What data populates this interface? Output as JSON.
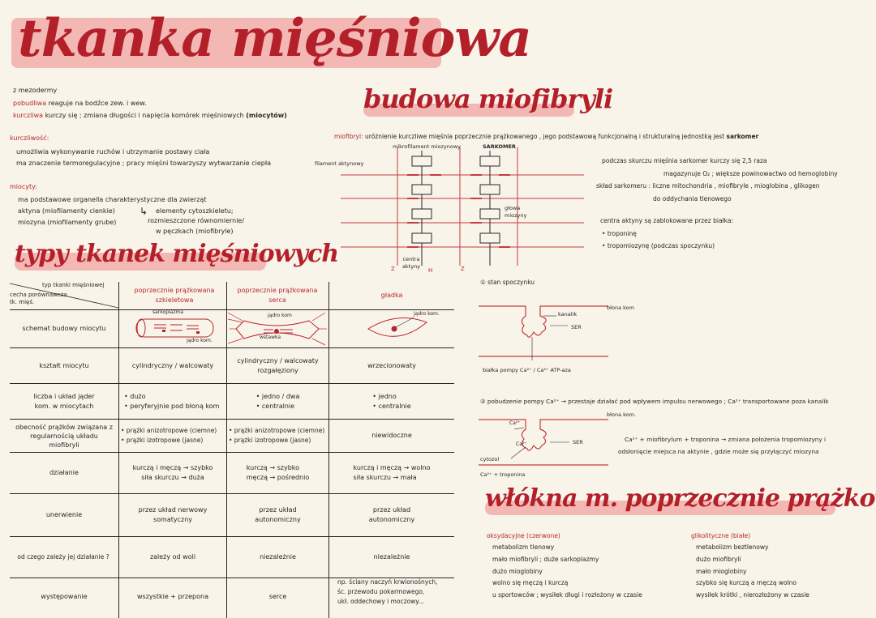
{
  "title": "tkanka mięśniowa",
  "intro": {
    "line1": "z mezodermy",
    "pobudliwa_label": "pobudliwa",
    "pobudliwa_text": "reaguje na bodźce zew. i wew.",
    "kurczliwa_label": "kurczliwa",
    "kurczliwa_text": "kurczy się ; zmiana długości i napięcia komórek mięśniowych",
    "kurczliwa_bold": "(miocytów)"
  },
  "kurczliwosc": {
    "label": "kurczliwość:",
    "lines": [
      "umożliwia wykonywanie ruchów i utrzymanie postawy ciała",
      "ma znaczenie termoregulacyjne ; pracy mięśni towarzyszy wytwarzanie ciepła"
    ]
  },
  "miocyty": {
    "label": "miocyty:",
    "line1": "ma podstawowe organella charakterystyczne dla zwierząt",
    "aktyna": "aktyna (miofilamenty cienkie)",
    "miozyna": "miozyna (miofilamenty grube)",
    "right1": "elementy cytoszkieletu;",
    "right2": "rozmieszczone równomiernie/",
    "right3": "w pęczkach (miofibryle)"
  },
  "budowa": {
    "title": "budowa miofibryli",
    "def_label": "miofibryl:",
    "def_text": "uróżnienie kurczliwe mięśnia poprzecznie prążkowanego , jego podstawową funkcjonalną i strukturalną jednostką jest",
    "def_bold": "sarkomer",
    "labels": {
      "miozynowy": "mikrofilament miozynowy",
      "sarkomer": "SARKOMER",
      "aktynowy": "filament aktynowy",
      "glowa": "głowa miozyny",
      "centra": "centra aktyny",
      "z1": "Z",
      "h": "H",
      "z2": "Z"
    },
    "notes": [
      "podczas skurczu mięśnia sarkomer kurczy się 2,5 raza",
      "magazynuje O₂ ; większe powinowactwo od hemoglobiny",
      "skład sarkomeru : liczne mitochondria , miofibryle , mioglobina , glikogen",
      "do oddychania tlenowego"
    ],
    "centra_note": "centra aktyny są zablokowane przez białka:",
    "bullets": [
      "troponinę",
      "tropomiozynę (podczas spoczynku)"
    ]
  },
  "typy": {
    "title": "typy tkanek mięśniowych",
    "corner_top": "typ tkanki mięśniowej",
    "corner_bottom": "cecha porównawcza tk. mięś.",
    "columns": [
      "poprzecznie prążkowana szkieletowa",
      "poprzecznie prążkowana serca",
      "gładka"
    ],
    "diagram_labels": {
      "sarkoplazma": "sarkoplazma",
      "jadro1": "jądro kom.",
      "jadro2": "jądro kom",
      "wstawka": "wstawka",
      "jadro3": "jądro kom."
    },
    "rows": [
      {
        "label": "schemat budowy miocytu",
        "cells": [
          "",
          "",
          ""
        ]
      },
      {
        "label": "kształt miocytu",
        "cells": [
          "cylindryczny / walcowaty",
          "cylindryczny / walcowaty rozgałęziony",
          "wrzecionowaty"
        ]
      },
      {
        "label": "liczba i układ jąder kom. w miocytach",
        "cells": [
          "• dużo\n• peryferyjnie pod błoną kom",
          "• jedno / dwa\n• centralnie",
          "• jedno\n• centralnie"
        ]
      },
      {
        "label": "obecność prążków związana z regularnością układu miofibryli",
        "cells": [
          "• prążki anizotropowe (ciemne)\n• prążki izotropowe (jasne)",
          "• prążki anizotropowe (ciemne)\n• prążki izotropowe (jasne)",
          "niewidoczne"
        ]
      },
      {
        "label": "działanie",
        "cells": [
          "kurczą i męczą → szybko\nsiła skurczu → duża",
          "kurczą → szybko\nmęczą → pośrednio",
          "kurczą i męczą → wolno\nsiła skurczu → mała"
        ]
      },
      {
        "label": "unerwienie",
        "cells": [
          "przez układ nerwowy somatyczny",
          "przez układ autonomiczny",
          "przez układ autonomiczny"
        ]
      },
      {
        "label": "od czego zależy jej działanie ?",
        "cells": [
          "zależy od woli",
          "niezależnie",
          "niezależnie"
        ]
      },
      {
        "label": "występowanie",
        "cells": [
          "wszystkie + przepona",
          "serce",
          "np. ściany naczyń krwionośnych,\nśc. przewodu pokarmowego,\nukł. oddechowy i moczowy..."
        ]
      }
    ]
  },
  "stany": {
    "s1_title": "① stan spoczynku",
    "s1_labels": {
      "blona": "błona kom",
      "kanalik": "kanalik",
      "ser": "SER",
      "pompa": "białka pompy Ca²⁺ / Ca²⁺ ATP-aza"
    },
    "s2_title": "② pobudzenie pompy Ca²⁺ → przestaje działać pod wpływem impulsu nerwowego ; Ca²⁺ transportowane poza kanalik",
    "s2_labels": {
      "blona": "błona kom.",
      "ca1": "Ca²⁺",
      "ca2": "Ca²⁺",
      "ser": "SER",
      "cytozol": "cytozol",
      "bottom": "Ca²⁺ + troponina"
    },
    "s2_note1": "Ca²⁺ + miofibrylum + troponina → zmiana położenia tropomiozyny i",
    "s2_note2": "odsłonięcie miejsca na aktynie , gdzie może się przyłączyć miozyna"
  },
  "wlokna": {
    "title": "włókna m. poprzecznie prążkow.",
    "left_label": "oksydacyjne (czerwone)",
    "left": [
      "metabolizm tlenowy",
      "mało miofibryli ; duże sarkoplazmy",
      "dużo mioglobiny",
      "wolno się męczą i kurczą",
      "u sportowców ; wysiłek długi i rozłożony w czasie"
    ],
    "right_label": "glikolityczne (białe)",
    "right": [
      "metabolizm beztlenowy",
      "dużo miofibryli",
      "mało mioglobiny",
      "szybko się kurczą a męczą wolno",
      "wysiłek krótki , nierozłożony w czasie"
    ]
  },
  "colors": {
    "accent": "#b8262c",
    "highlight": "#f3a4a2",
    "paper": "#f8f4ea"
  }
}
